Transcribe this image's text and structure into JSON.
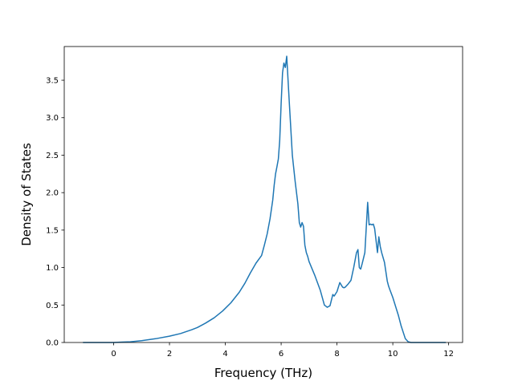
{
  "chart_data": {
    "type": "line",
    "title": "",
    "xlabel": "Frequency (THz)",
    "ylabel": "Density of States",
    "xlim": [
      -1.77,
      12.5
    ],
    "ylim": [
      0.0,
      3.95
    ],
    "xticks": [
      0,
      2,
      4,
      6,
      8,
      10,
      12
    ],
    "xtick_labels": [
      "0",
      "2",
      "4",
      "6",
      "8",
      "10",
      "12"
    ],
    "yticks": [
      0.0,
      0.5,
      1.0,
      1.5,
      2.0,
      2.5,
      3.0,
      3.5
    ],
    "ytick_labels": [
      "0.0",
      "0.5",
      "1.0",
      "1.5",
      "2.0",
      "2.5",
      "3.0",
      "3.5"
    ],
    "grid": false,
    "legend": "none",
    "series_color": "#1f77b4",
    "series": [
      {
        "x": [
          -1.1,
          -0.5,
          0.0,
          0.3,
          0.6,
          1.0,
          1.5,
          2.0,
          2.4,
          2.8,
          3.0,
          3.3,
          3.6,
          3.9,
          4.2,
          4.5,
          4.7,
          4.9,
          5.1,
          5.3,
          5.4,
          5.5,
          5.6,
          5.7,
          5.75,
          5.8,
          5.85,
          5.9,
          5.95,
          6.0,
          6.05,
          6.1,
          6.15,
          6.2,
          6.3,
          6.4,
          6.5,
          6.6,
          6.65,
          6.7,
          6.75,
          6.8,
          6.85,
          6.9,
          6.95,
          7.0,
          7.2,
          7.4,
          7.55,
          7.65,
          7.75,
          7.85,
          7.9,
          8.0,
          8.1,
          8.2,
          8.25,
          8.3,
          8.4,
          8.5,
          8.6,
          8.7,
          8.75,
          8.8,
          8.85,
          8.9,
          9.0,
          9.1,
          9.15,
          9.2,
          9.25,
          9.3,
          9.35,
          9.45,
          9.5,
          9.55,
          9.6,
          9.7,
          9.8,
          9.85,
          9.9,
          10.0,
          10.2,
          10.3,
          10.45,
          10.55,
          10.65,
          10.75,
          10.9,
          11.3,
          11.9
        ],
        "y": [
          0.0,
          0.0,
          0.0,
          0.005,
          0.01,
          0.025,
          0.05,
          0.085,
          0.12,
          0.17,
          0.2,
          0.26,
          0.33,
          0.42,
          0.53,
          0.67,
          0.79,
          0.93,
          1.06,
          1.16,
          1.3,
          1.45,
          1.65,
          1.9,
          2.1,
          2.25,
          2.35,
          2.45,
          2.7,
          3.2,
          3.6,
          3.73,
          3.67,
          3.82,
          3.15,
          2.5,
          2.15,
          1.85,
          1.6,
          1.54,
          1.6,
          1.55,
          1.3,
          1.2,
          1.15,
          1.08,
          0.9,
          0.7,
          0.5,
          0.47,
          0.49,
          0.64,
          0.62,
          0.68,
          0.8,
          0.74,
          0.73,
          0.74,
          0.78,
          0.83,
          1.0,
          1.2,
          1.24,
          1.0,
          0.98,
          1.05,
          1.2,
          1.87,
          1.57,
          1.58,
          1.57,
          1.58,
          1.52,
          1.2,
          1.41,
          1.28,
          1.2,
          1.07,
          0.82,
          0.75,
          0.7,
          0.6,
          0.36,
          0.22,
          0.05,
          0.01,
          0.0,
          0.0,
          0.0,
          0.0,
          0.0
        ]
      }
    ]
  }
}
